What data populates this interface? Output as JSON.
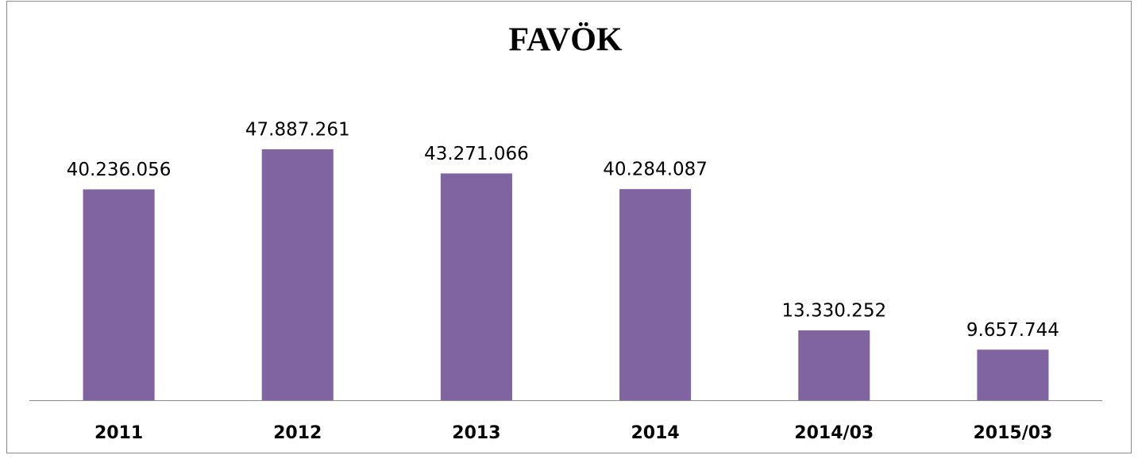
{
  "chart_data": {
    "type": "bar",
    "title": "FAVÖK",
    "categories": [
      "2011",
      "2012",
      "2013",
      "2014",
      "2014/03",
      "2015/03"
    ],
    "values": [
      40236056,
      47887261,
      43271066,
      40284087,
      13330252,
      9657744
    ],
    "value_labels": [
      "40.236.056",
      "47.887.261",
      "43.271.066",
      "40.284.087",
      "13.330.252",
      "9.657.744"
    ],
    "color": "#8064a2",
    "ylim": [
      0,
      60000000
    ]
  }
}
